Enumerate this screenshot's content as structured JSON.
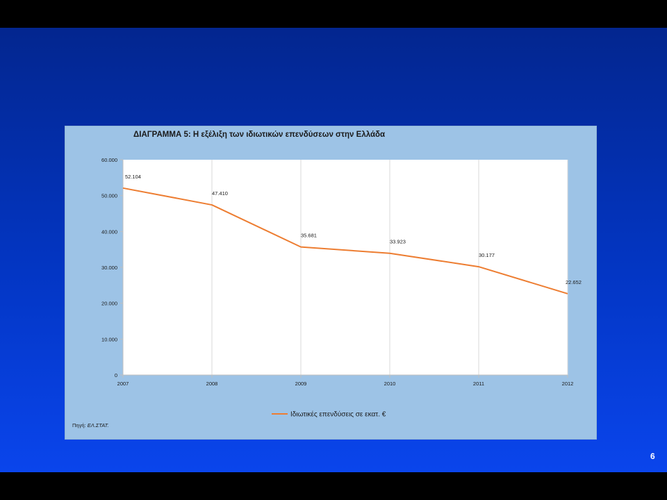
{
  "slide": {
    "page_number": "6"
  },
  "chart_data": {
    "type": "line",
    "title": "ΔΙΑΓΡΑΜΜΑ 5: Η εξέλιξη των ιδιωτικών επενδύσεων στην Ελλάδα",
    "categories": [
      "2007",
      "2008",
      "2009",
      "2010",
      "2011",
      "2012"
    ],
    "series": [
      {
        "name": "Ιδιωτικές επενδύσεις σε εκατ. €",
        "values": [
          52104,
          47410,
          35681,
          33923,
          30177,
          22652
        ],
        "data_labels": [
          "52.104",
          "47.410",
          "35.681",
          "33.923",
          "30.177",
          "22.652"
        ],
        "color": "#ed7d31"
      }
    ],
    "ylim": [
      0,
      60000
    ],
    "yticks": [
      0,
      10000,
      20000,
      30000,
      40000,
      50000,
      60000
    ],
    "ytick_labels": [
      "0",
      "10.000",
      "20.000",
      "30.000",
      "40.000",
      "50.000",
      "60.000"
    ],
    "xlabel": "",
    "ylabel": "",
    "grid": "vertical",
    "legend_position": "bottom",
    "source_note": "Πηγή: ",
    "source_name": "ΕΛ.ΣΤΑΤ."
  }
}
